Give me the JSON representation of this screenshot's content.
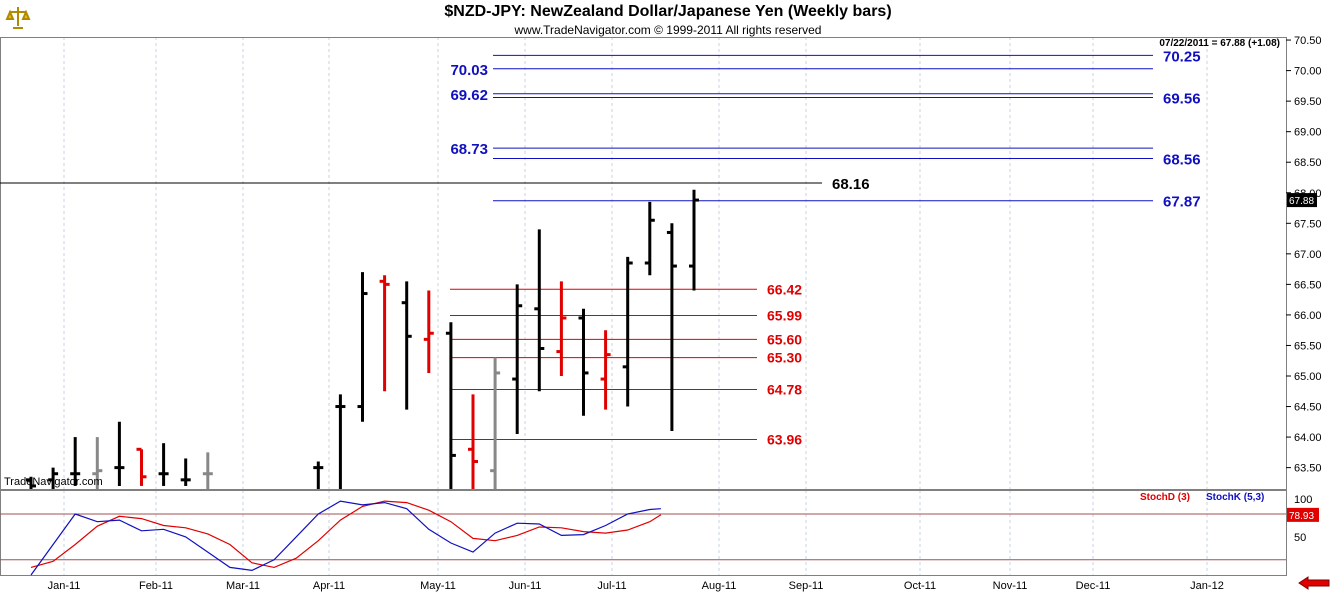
{
  "header": {
    "title": "$NZD-JPY:  NewZealand Dollar/Japanese Yen  (Weekly bars)",
    "subtitle": "www.TradeNavigator.com © 1999-2011 All rights reserved",
    "last_info": "07/22/2011 = 67.88 (+1.08)",
    "watermark": "TradeNavigator.com"
  },
  "colors": {
    "blue": "#1010c0",
    "red": "#e00000",
    "up_bar": "#000000",
    "down_bar": "#e00000",
    "grey_bar": "#888888",
    "grid": "#c8d0e0"
  },
  "chart_data": [
    {
      "type": "ohlc",
      "name": "price",
      "ylim": [
        63.15,
        70.55
      ],
      "y_ticks": [
        "70.50",
        "70.00",
        "69.50",
        "69.00",
        "68.50",
        "68.00",
        "67.50",
        "67.00",
        "66.50",
        "66.00",
        "65.50",
        "65.00",
        "64.50",
        "64.00",
        "63.50"
      ],
      "last_price_label": "67.88",
      "x_labels": [
        "Jan-11",
        "Feb-11",
        "Mar-11",
        "Apr-11",
        "May-11",
        "Jun-11",
        "Jul-11",
        "Aug-11",
        "Sep-11",
        "Oct-11",
        "Nov-11",
        "Dec-11",
        "Jan-12"
      ],
      "bars": [
        {
          "week": 0,
          "o": 63.3,
          "h": 63.35,
          "l": 63.1,
          "c": 63.2,
          "color": "black"
        },
        {
          "week": 1,
          "o": 63.3,
          "h": 63.5,
          "l": 63.1,
          "c": 63.4,
          "color": "black"
        },
        {
          "week": 2,
          "o": 63.4,
          "h": 64.0,
          "l": 63.2,
          "c": 63.4,
          "color": "black"
        },
        {
          "week": 3,
          "o": 63.4,
          "h": 64.0,
          "l": 63.1,
          "c": 63.45,
          "color": "grey"
        },
        {
          "week": 4,
          "o": 63.5,
          "h": 64.25,
          "l": 63.2,
          "c": 63.5,
          "color": "black"
        },
        {
          "week": 5,
          "o": 63.8,
          "h": 63.8,
          "l": 63.2,
          "c": 63.35,
          "color": "red"
        },
        {
          "week": 6,
          "o": 63.4,
          "h": 63.9,
          "l": 63.2,
          "c": 63.4,
          "color": "black"
        },
        {
          "week": 7,
          "o": 63.3,
          "h": 63.65,
          "l": 63.2,
          "c": 63.3,
          "color": "black"
        },
        {
          "week": 8,
          "o": 63.4,
          "h": 63.75,
          "l": 63.15,
          "c": 63.4,
          "color": "grey"
        },
        {
          "week": 13,
          "o": 63.5,
          "h": 63.6,
          "l": 63.1,
          "c": 63.5,
          "color": "black"
        },
        {
          "week": 14,
          "o": 64.5,
          "h": 64.7,
          "l": 63.1,
          "c": 64.5,
          "color": "black"
        },
        {
          "week": 15,
          "o": 64.5,
          "h": 66.7,
          "l": 64.25,
          "c": 66.35,
          "color": "black"
        },
        {
          "week": 16,
          "o": 66.55,
          "h": 66.65,
          "l": 64.75,
          "c": 66.5,
          "color": "red"
        },
        {
          "week": 17,
          "o": 66.2,
          "h": 66.55,
          "l": 64.45,
          "c": 65.65,
          "color": "black"
        },
        {
          "week": 18,
          "o": 65.6,
          "h": 66.4,
          "l": 65.05,
          "c": 65.7,
          "color": "red"
        },
        {
          "week": 19,
          "o": 65.7,
          "h": 65.88,
          "l": 63.1,
          "c": 63.7,
          "color": "black"
        },
        {
          "week": 20,
          "o": 63.8,
          "h": 64.7,
          "l": 63.1,
          "c": 63.6,
          "color": "red"
        },
        {
          "week": 21,
          "o": 63.45,
          "h": 65.3,
          "l": 63.1,
          "c": 65.05,
          "color": "grey"
        },
        {
          "week": 22,
          "o": 64.95,
          "h": 66.5,
          "l": 64.05,
          "c": 66.15,
          "color": "black"
        },
        {
          "week": 23,
          "o": 66.1,
          "h": 67.4,
          "l": 64.75,
          "c": 65.45,
          "color": "black"
        },
        {
          "week": 24,
          "o": 65.4,
          "h": 66.55,
          "l": 65.0,
          "c": 65.95,
          "color": "red"
        },
        {
          "week": 25,
          "o": 65.95,
          "h": 66.1,
          "l": 64.35,
          "c": 65.05,
          "color": "black"
        },
        {
          "week": 26,
          "o": 64.95,
          "h": 65.75,
          "l": 64.45,
          "c": 65.35,
          "color": "red"
        },
        {
          "week": 27,
          "o": 65.15,
          "h": 66.95,
          "l": 64.5,
          "c": 66.85,
          "color": "black"
        },
        {
          "week": 28,
          "o": 66.85,
          "h": 67.85,
          "l": 66.65,
          "c": 67.55,
          "color": "black"
        },
        {
          "week": 29,
          "o": 67.35,
          "h": 67.5,
          "l": 64.1,
          "c": 66.8,
          "color": "black"
        },
        {
          "week": 30,
          "o": 66.8,
          "h": 68.05,
          "l": 66.4,
          "c": 67.88,
          "color": "black"
        }
      ],
      "levels_blue": [
        {
          "value": 70.25,
          "label": "70.25",
          "side": "right"
        },
        {
          "value": 70.03,
          "label": "70.03",
          "side": "left"
        },
        {
          "value": 69.62,
          "label": "69.62",
          "side": "left"
        },
        {
          "value": 69.56,
          "label": "69.56",
          "side": "right"
        },
        {
          "value": 68.73,
          "label": "68.73",
          "side": "left"
        },
        {
          "value": 68.56,
          "label": "68.56",
          "side": "right"
        },
        {
          "value": 67.87,
          "label": "67.87",
          "side": "right"
        }
      ],
      "level_black": {
        "value": 68.16,
        "label": "68.16"
      },
      "levels_red": [
        {
          "value": 66.42,
          "label": "66.42"
        },
        {
          "value": 65.99,
          "label": "65.99"
        },
        {
          "value": 65.6,
          "label": "65.60"
        },
        {
          "value": 65.3,
          "label": "65.30"
        },
        {
          "value": 64.78,
          "label": "64.78"
        },
        {
          "value": 63.96,
          "label": "63.96"
        }
      ]
    },
    {
      "type": "line",
      "name": "stochastics",
      "ylim": [
        0,
        105
      ],
      "y_ticks": [
        "100",
        "50"
      ],
      "legend": [
        "StochD (3)",
        "StochK (5,3)"
      ],
      "last_value_label": "78.93",
      "series": [
        {
          "name": "StochD (3)",
          "color": "red",
          "values": [
            [
              0,
              10
            ],
            [
              2,
              18
            ],
            [
              4,
              40
            ],
            [
              6,
              64
            ],
            [
              8,
              77
            ],
            [
              10,
              74
            ],
            [
              12,
              65
            ],
            [
              14,
              62
            ],
            [
              16,
              54
            ],
            [
              18,
              40
            ],
            [
              20,
              16
            ],
            [
              22,
              10
            ],
            [
              24,
              22
            ],
            [
              26,
              45
            ],
            [
              28,
              72
            ],
            [
              30,
              90
            ],
            [
              32,
              97
            ],
            [
              34,
              95
            ],
            [
              36,
              85
            ],
            [
              38,
              70
            ],
            [
              40,
              48
            ],
            [
              42,
              45
            ],
            [
              44,
              52
            ],
            [
              46,
              63
            ],
            [
              48,
              62
            ],
            [
              50,
              57
            ],
            [
              52,
              55
            ],
            [
              54,
              59
            ],
            [
              56,
              70
            ],
            [
              57,
              79
            ]
          ]
        },
        {
          "name": "StochK (5,3)",
          "color": "blue",
          "values": [
            [
              0,
              0
            ],
            [
              2,
              40
            ],
            [
              4,
              80
            ],
            [
              6,
              70
            ],
            [
              8,
              72
            ],
            [
              10,
              58
            ],
            [
              12,
              60
            ],
            [
              14,
              50
            ],
            [
              16,
              30
            ],
            [
              18,
              10
            ],
            [
              20,
              6
            ],
            [
              22,
              20
            ],
            [
              24,
              50
            ],
            [
              26,
              80
            ],
            [
              28,
              97
            ],
            [
              30,
              92
            ],
            [
              32,
              95
            ],
            [
              34,
              87
            ],
            [
              36,
              60
            ],
            [
              38,
              42
            ],
            [
              40,
              30
            ],
            [
              42,
              55
            ],
            [
              44,
              68
            ],
            [
              46,
              67
            ],
            [
              48,
              52
            ],
            [
              50,
              53
            ],
            [
              52,
              65
            ],
            [
              54,
              80
            ],
            [
              56,
              86
            ],
            [
              57,
              87
            ]
          ]
        }
      ]
    }
  ]
}
